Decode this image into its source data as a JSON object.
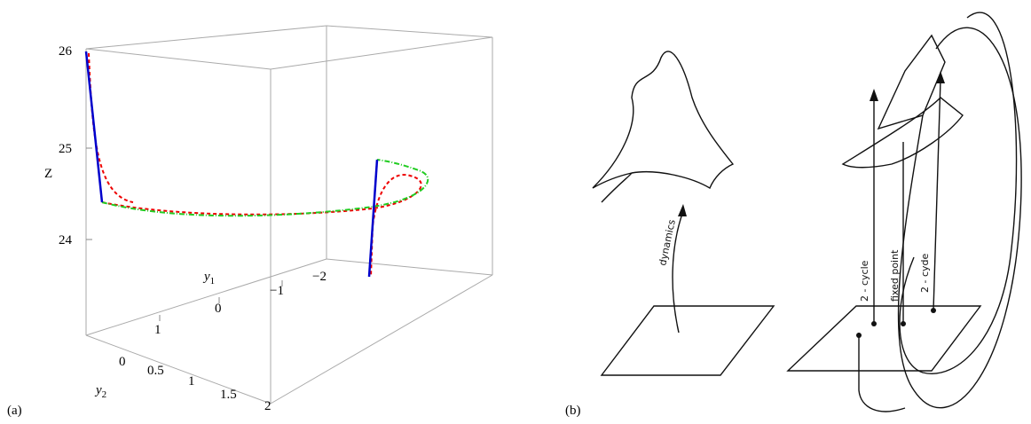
{
  "panel_a": {
    "label": "(a)",
    "z_label": "Z",
    "z_ticks": [
      "26",
      "25",
      "24"
    ],
    "y1_label": {
      "base": "y",
      "sub": "1"
    },
    "y1_ticks": [
      "−2",
      "−1",
      "0",
      "1"
    ],
    "y2_label": {
      "base": "y",
      "sub": "2"
    },
    "y2_ticks": [
      "0",
      "0.5",
      "1",
      "1.5",
      "2"
    ]
  },
  "panel_b": {
    "label": "(b)",
    "annotations": [
      "dynamics",
      "2 - cycle",
      "fixed point",
      "2 - cyde"
    ]
  }
}
